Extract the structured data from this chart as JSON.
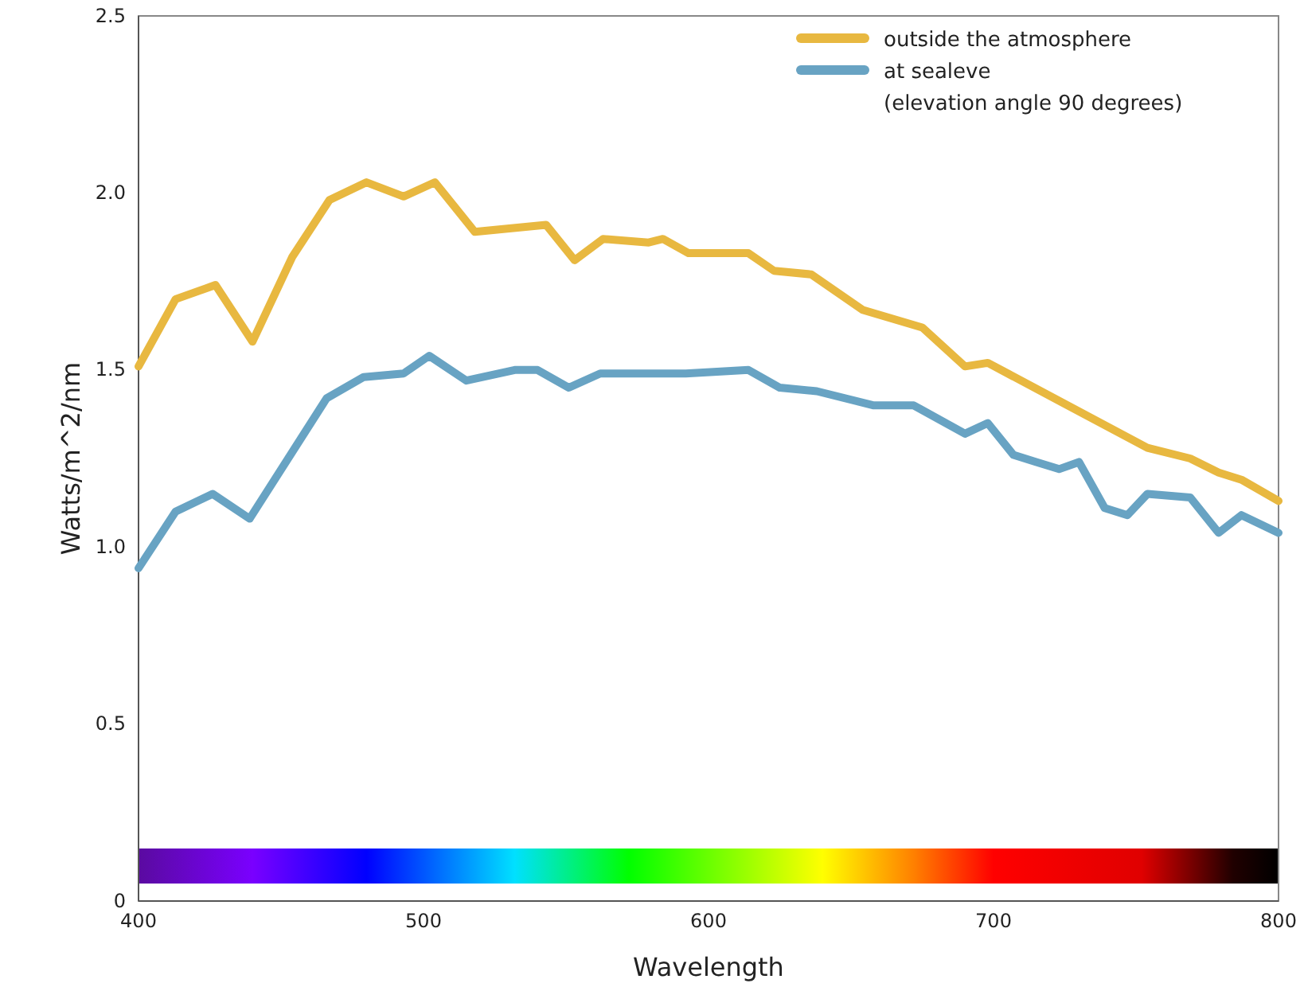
{
  "chart_data": {
    "type": "line",
    "xlabel": "Wavelength",
    "ylabel": "Watts/m^2/nm",
    "xlim": [
      400,
      800
    ],
    "ylim": [
      0,
      2.5
    ],
    "xticks": [
      400,
      500,
      600,
      700,
      800
    ],
    "yticks": [
      {
        "value": 0,
        "label": "0"
      },
      {
        "value": 0.5,
        "label": "0.5"
      },
      {
        "value": 1,
        "label": "1.0"
      },
      {
        "value": 1.5,
        "label": "1.5"
      },
      {
        "value": 2,
        "label": "2.0"
      },
      {
        "value": 2.5,
        "label": "2.5"
      }
    ],
    "grid": false,
    "legend": "top right",
    "line_style": "solid",
    "marker": "none",
    "annotations": [
      "(elevation angle 90 degrees)"
    ],
    "series": [
      {
        "name": "outside the atmosphere",
        "color": "#e8b840",
        "x": [
          400,
          413,
          427,
          440,
          454,
          467,
          480,
          493,
          504,
          518,
          543,
          553,
          563,
          579,
          584,
          593,
          614,
          623,
          636,
          654,
          675,
          690,
          698,
          754,
          769,
          779,
          787,
          800
        ],
        "values": [
          1.51,
          1.7,
          1.74,
          1.58,
          1.82,
          1.98,
          2.03,
          1.99,
          2.03,
          1.89,
          1.91,
          1.81,
          1.87,
          1.86,
          1.87,
          1.83,
          1.83,
          1.78,
          1.77,
          1.67,
          1.62,
          1.51,
          1.52,
          1.28,
          1.25,
          1.21,
          1.19,
          1.13
        ]
      },
      {
        "name": "at sealeve",
        "color": "#68a3c3",
        "x": [
          400,
          413,
          426,
          439,
          466,
          479,
          493,
          502,
          515,
          532,
          540,
          551,
          562,
          582,
          592,
          614,
          625,
          638,
          658,
          672,
          690,
          698,
          707,
          715,
          723,
          730,
          739,
          747,
          754,
          769,
          779,
          787,
          800
        ],
        "values": [
          0.94,
          1.1,
          1.15,
          1.08,
          1.42,
          1.48,
          1.49,
          1.54,
          1.47,
          1.5,
          1.5,
          1.45,
          1.49,
          1.49,
          1.49,
          1.5,
          1.45,
          1.44,
          1.4,
          1.4,
          1.32,
          1.35,
          1.26,
          1.24,
          1.22,
          1.24,
          1.11,
          1.09,
          1.15,
          1.14,
          1.04,
          1.09,
          1.04
        ]
      }
    ]
  }
}
